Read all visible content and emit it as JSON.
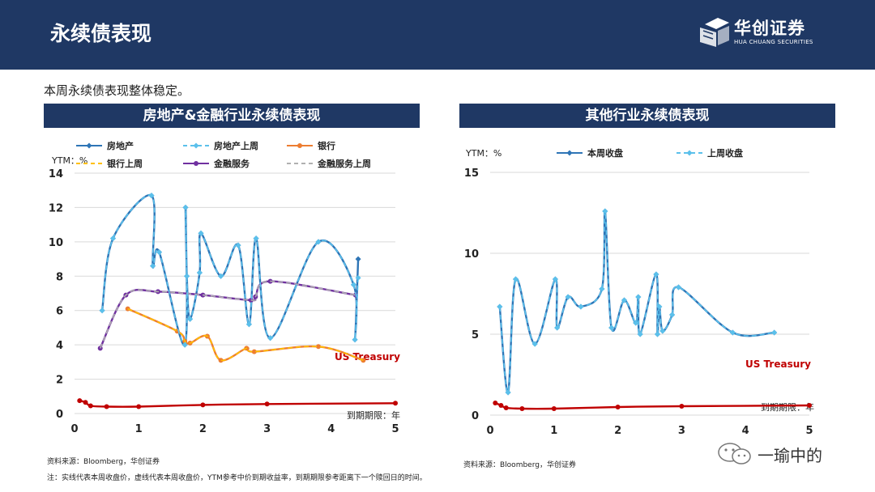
{
  "header": {
    "title": "永续债表现",
    "logo_cn": "华创证券",
    "logo_en": "HUA CHUANG SECURITIES"
  },
  "subtitle": "本周永续债表现整体稳定。",
  "panels": [
    {
      "title": "房地产&金融行业永续债表现"
    },
    {
      "title": "其他行业永续债表现"
    }
  ],
  "footer": {
    "source_left": "资料来源：Bloomberg，华创证券",
    "note": "注：实线代表本周收盘价，虚线代表本周收盘价，YTM参考中价到期收益率，到期期限参考距离下一个赎回日的时间。",
    "source_right": "资料来源：Bloomberg，华创证券",
    "watermark": "一瑜中的"
  },
  "chart_data": [
    {
      "type": "line",
      "ylabel": "YTM：%",
      "xlabel": "到期期限：年",
      "xlim": [
        0,
        5
      ],
      "ylim": [
        0,
        14
      ],
      "xticks": [
        0,
        1,
        2,
        3,
        4,
        5
      ],
      "yticks": [
        0,
        2,
        4,
        6,
        8,
        10,
        12,
        14
      ],
      "grid": "horizontal",
      "legend": "top",
      "annotation": "US Treasury",
      "series": [
        {
          "name": "房地产",
          "color": "#2e75b6",
          "style": "solid",
          "marker": "diamond",
          "x": [
            0.43,
            0.6,
            1.2,
            1.22,
            1.32,
            1.72,
            1.73,
            1.75,
            1.8,
            1.95,
            1.97,
            2.28,
            2.55,
            2.72,
            2.83,
            3.05,
            3.8,
            4.35,
            4.37,
            4.42
          ],
          "y": [
            6.0,
            10.2,
            12.7,
            8.6,
            9.4,
            4.0,
            12.0,
            8.0,
            5.5,
            8.2,
            10.5,
            8.0,
            9.8,
            5.2,
            10.2,
            4.4,
            10.0,
            7.5,
            4.3,
            9.0
          ]
        },
        {
          "name": "房地产上周",
          "color": "#5bc0eb",
          "style": "dashed",
          "marker": "diamond",
          "x": [
            0.43,
            0.6,
            1.2,
            1.22,
            1.32,
            1.72,
            1.73,
            1.75,
            1.8,
            1.95,
            1.97,
            2.28,
            2.55,
            2.72,
            2.83,
            3.05,
            3.8,
            4.35,
            4.37,
            4.42
          ],
          "y": [
            6.0,
            10.2,
            12.7,
            8.6,
            9.4,
            4.0,
            12.0,
            8.0,
            5.5,
            8.2,
            10.5,
            8.0,
            9.8,
            5.2,
            10.2,
            4.4,
            10.0,
            7.5,
            4.3,
            7.9
          ]
        },
        {
          "name": "银行",
          "color": "#ed7d31",
          "style": "solid",
          "marker": "dot",
          "x": [
            0.83,
            1.6,
            1.72,
            1.8,
            2.07,
            2.28,
            2.68,
            2.8,
            3.8,
            4.5
          ],
          "y": [
            6.1,
            4.8,
            4.2,
            4.1,
            4.5,
            3.1,
            3.8,
            3.6,
            3.9,
            3.1
          ]
        },
        {
          "name": "银行上周",
          "color": "#ffc000",
          "style": "dashed",
          "marker": "none",
          "x": [
            0.83,
            1.6,
            1.72,
            1.8,
            2.07,
            2.28,
            2.68,
            2.8,
            3.8,
            4.5
          ],
          "y": [
            6.1,
            4.8,
            4.2,
            4.1,
            4.5,
            3.1,
            3.8,
            3.6,
            3.9,
            3.1
          ]
        },
        {
          "name": "金融服务",
          "color": "#7030a0",
          "style": "solid",
          "marker": "dot",
          "x": [
            0.4,
            0.8,
            1.3,
            2.0,
            2.75,
            2.82,
            3.05,
            4.38
          ],
          "y": [
            3.8,
            6.9,
            7.1,
            6.9,
            6.6,
            6.8,
            7.7,
            6.9
          ]
        },
        {
          "name": "金融服务上周",
          "color": "#b0b0b0",
          "style": "dashed",
          "marker": "none",
          "x": [
            0.4,
            0.8,
            1.3,
            2.0,
            2.75,
            2.82,
            3.05,
            4.38
          ],
          "y": [
            3.8,
            6.9,
            7.1,
            6.9,
            6.6,
            6.8,
            7.7,
            6.9
          ]
        },
        {
          "name": "US Treasury",
          "color": "#c00000",
          "style": "solid",
          "marker": "dot",
          "x": [
            0.08,
            0.17,
            0.25,
            0.5,
            1.0,
            2.0,
            3.0,
            5.0
          ],
          "y": [
            0.75,
            0.65,
            0.45,
            0.4,
            0.4,
            0.5,
            0.55,
            0.6
          ]
        }
      ]
    },
    {
      "type": "line",
      "ylabel": "YTM：%",
      "xlabel": "到期期限：年",
      "xlim": [
        0,
        5
      ],
      "ylim": [
        0,
        15
      ],
      "xticks": [
        0,
        1,
        2,
        3,
        4,
        5
      ],
      "yticks": [
        0,
        5,
        10,
        15
      ],
      "grid": "horizontal",
      "legend": "top",
      "annotation": "US Treasury",
      "series": [
        {
          "name": "本周收盘",
          "color": "#2e75b6",
          "style": "solid",
          "marker": "diamond",
          "x": [
            0.15,
            0.28,
            0.4,
            0.7,
            1.02,
            1.05,
            1.22,
            1.42,
            1.75,
            1.8,
            1.9,
            2.1,
            2.28,
            2.32,
            2.35,
            2.6,
            2.62,
            2.65,
            2.7,
            2.85,
            2.95,
            3.8,
            4.45
          ],
          "y": [
            6.7,
            1.4,
            8.4,
            4.4,
            8.4,
            5.4,
            7.3,
            6.7,
            7.8,
            12.6,
            5.4,
            7.1,
            5.7,
            7.3,
            5.0,
            8.7,
            5.0,
            6.7,
            5.2,
            6.2,
            7.9,
            5.1,
            5.1
          ]
        },
        {
          "name": "上周收盘",
          "color": "#5bc0eb",
          "style": "dashed",
          "marker": "diamond",
          "x": [
            0.15,
            0.28,
            0.4,
            0.7,
            1.02,
            1.05,
            1.22,
            1.42,
            1.75,
            1.8,
            1.9,
            2.1,
            2.28,
            2.32,
            2.35,
            2.6,
            2.62,
            2.65,
            2.7,
            2.85,
            2.95,
            3.8,
            4.45
          ],
          "y": [
            6.7,
            1.4,
            8.4,
            4.4,
            8.4,
            5.4,
            7.3,
            6.7,
            7.8,
            12.6,
            5.4,
            7.1,
            5.7,
            7.3,
            5.0,
            8.7,
            5.0,
            6.7,
            5.2,
            6.2,
            7.9,
            5.1,
            5.1
          ]
        },
        {
          "name": "US Treasury",
          "color": "#c00000",
          "style": "solid",
          "marker": "dot",
          "x": [
            0.08,
            0.17,
            0.25,
            0.5,
            1.0,
            2.0,
            3.0,
            5.0
          ],
          "y": [
            0.75,
            0.6,
            0.45,
            0.4,
            0.4,
            0.5,
            0.55,
            0.6
          ]
        }
      ]
    }
  ]
}
